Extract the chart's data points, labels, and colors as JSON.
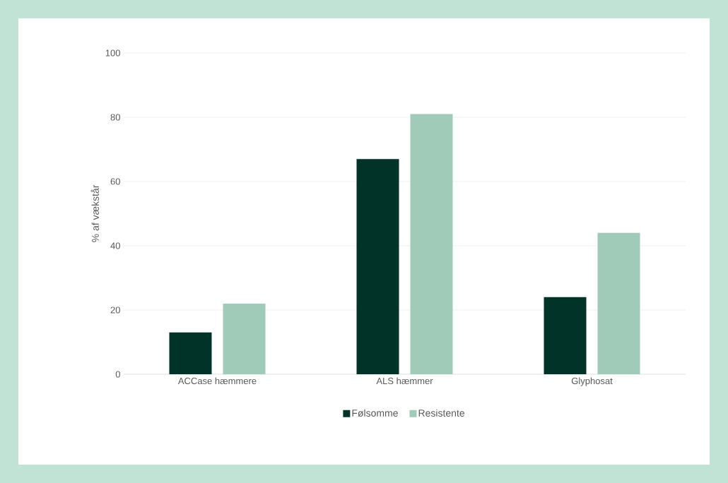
{
  "chart_data": {
    "type": "bar",
    "ylabel": "% af vækstår",
    "categories": [
      "ACCase hæmmere",
      "ALS hæmmer",
      "Glyphosat"
    ],
    "series": [
      {
        "name": "Følsomme",
        "color": "#013328",
        "values": [
          13,
          67,
          24
        ]
      },
      {
        "name": "Resistente",
        "color": "#9fcbb8",
        "values": [
          22,
          81,
          44
        ]
      }
    ],
    "ylim": [
      0,
      100
    ],
    "yticks": [
      0,
      20,
      40,
      60,
      80,
      100
    ],
    "grid": "y",
    "legend": "bottom"
  }
}
